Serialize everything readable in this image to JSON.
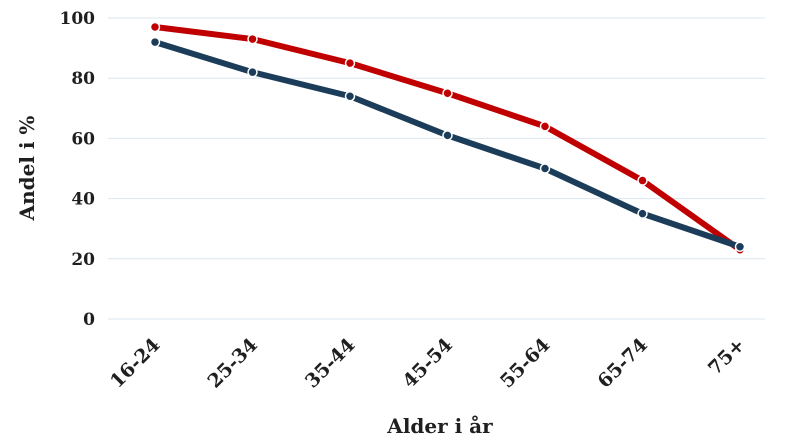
{
  "chart_data": {
    "type": "line",
    "xlabel": "Alder i år",
    "ylabel": "Andel i %",
    "categories": [
      "16-24",
      "25-34",
      "35-44",
      "45-54",
      "55-64",
      "65-74",
      "75+"
    ],
    "yticks": [
      "0",
      "20",
      "40",
      "60",
      "80",
      "100"
    ],
    "ylim": [
      0,
      100
    ],
    "grid": true,
    "legend": "none",
    "series": [
      {
        "color": "#c00000",
        "values": [
          97,
          93,
          85,
          75,
          64,
          46,
          23
        ]
      },
      {
        "color": "#1c3d5a",
        "values": [
          92,
          82,
          74,
          61,
          50,
          35,
          24
        ]
      }
    ]
  }
}
